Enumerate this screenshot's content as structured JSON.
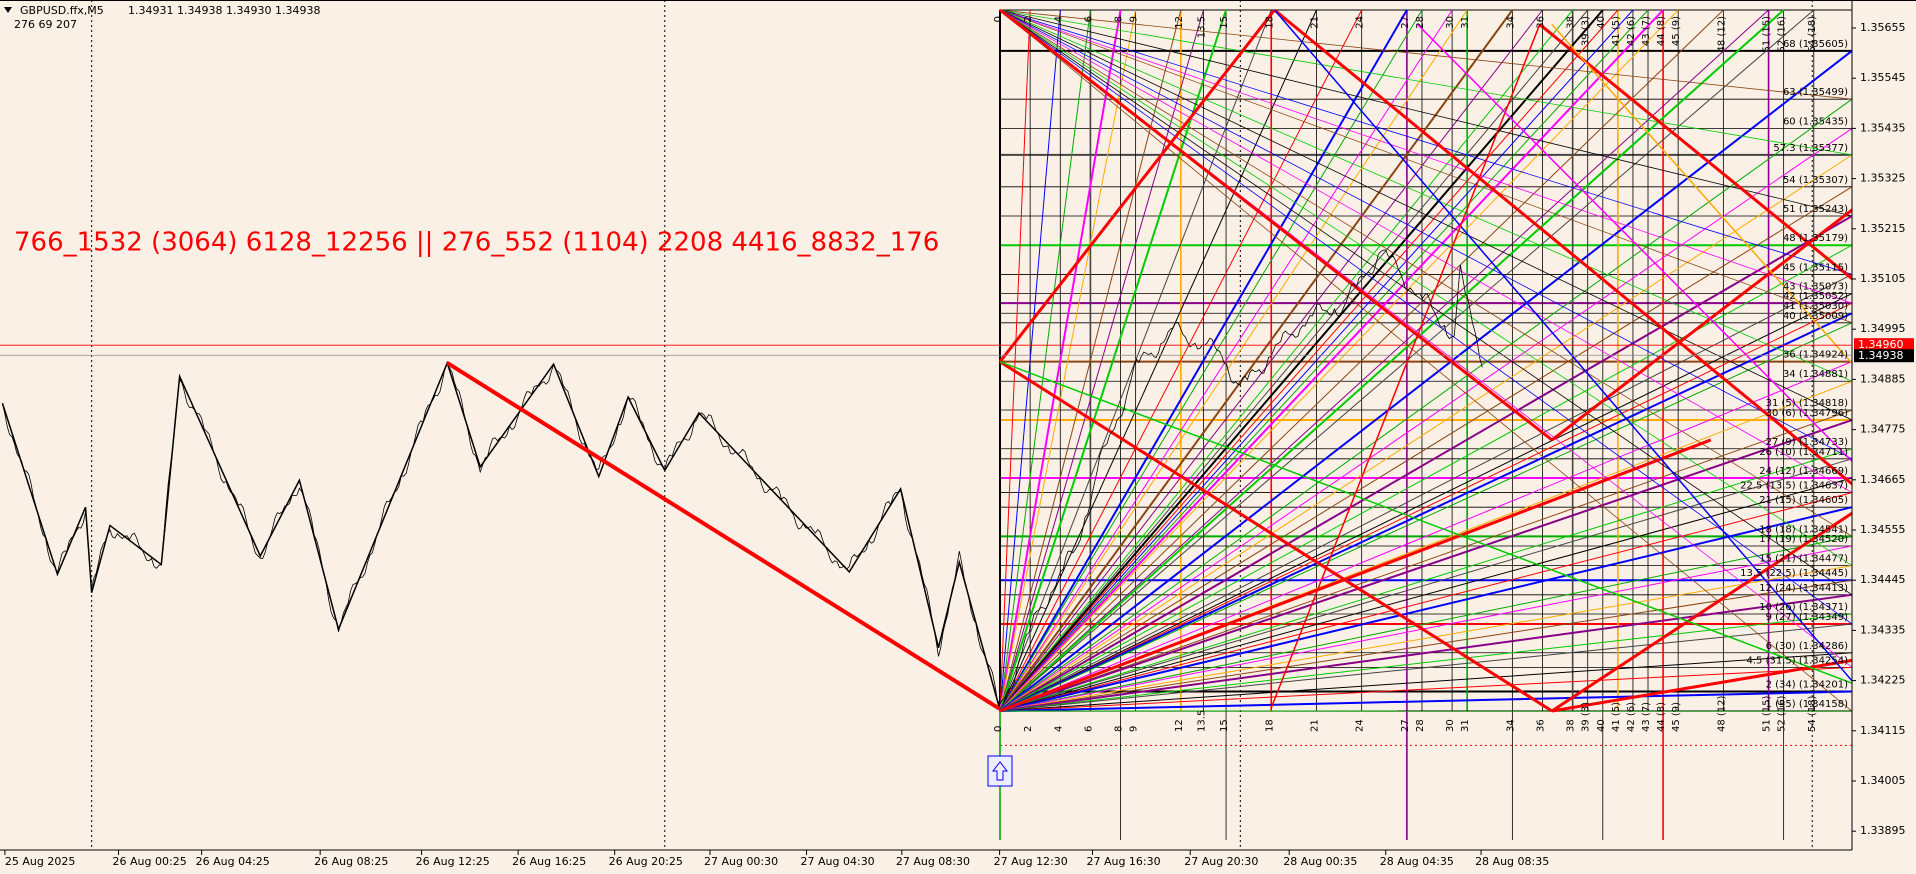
{
  "header": {
    "symbol": "GBPUSD.ffx,M5",
    "ohlc": "1.34931 1.34938 1.34930 1.34938",
    "indicator": "276  69  207"
  },
  "annotation": "766_1532 (3064) 6128_12256 || 276_552 (1104) 2208 4416_8832_176",
  "price_axis": {
    "labels": [
      "1.35655",
      "1.35545",
      "1.35435",
      "1.35325",
      "1.35215",
      "1.35105",
      "1.34995",
      "1.34885",
      "1.34775",
      "1.34665",
      "1.34555",
      "1.34445",
      "1.34335",
      "1.34225",
      "1.34115",
      "1.34005",
      "1.33895"
    ],
    "bid": "1.34960",
    "current": "1.34938"
  },
  "time_axis": [
    "25 Aug 2025",
    "26 Aug 00:25",
    "26 Aug 04:25",
    "26 Aug 08:25",
    "26 Aug 12:25",
    "26 Aug 16:25",
    "26 Aug 20:25",
    "27 Aug 00:30",
    "27 Aug 04:30",
    "27 Aug 08:30",
    "27 Aug 12:30",
    "27 Aug 16:30",
    "27 Aug 20:30",
    "28 Aug 00:35",
    "28 Aug 04:35",
    "28 Aug 08:35"
  ],
  "level_labels": [
    "68 (1.35605)",
    "63 (1.35499)",
    "60 (1.35435)",
    "57.3 (1.35377)",
    "54 (1.35307)",
    "51 (1.35243)",
    "48 (1.35179)",
    "45 (1.35115)",
    "43 (1.35073)",
    "42 (1.35052)",
    "41 (1.35030)",
    "40 (1.35009)",
    "36 (1.34924)",
    "34 (1.34881)",
    "31 (5) (1.34818)",
    "30 (6) (1.34796)",
    "27 (9) (1.34733)",
    "26 (10) (1.34711)",
    "24 (12) (1.34669)",
    "22.5 (13.5) (1.34637)",
    "21 (15) (1.34605)",
    "18 (18) (1.34541)",
    "17 (19) (1.34520)",
    "15 (21) (1.34477)",
    "13.5 (22.5) (1.34445)",
    "12 (24) (1.34413)",
    "10 (26) (1.34371)",
    "9 (27) (1.34349)",
    "6 (30) (1.34286)",
    "4.5 (31.5) (1.34254)",
    "2 (34) (1.34201)",
    "1 (35) (1.34158)"
  ],
  "time_labels": [
    "0",
    "2",
    "4",
    "6",
    "8",
    "9",
    "12",
    "13.5",
    "15",
    "18",
    "21",
    "24",
    "27",
    "28",
    "30",
    "31",
    "34",
    "36",
    "38",
    "39 (3)",
    "40",
    "41 (5)",
    "42 (6)",
    "43 (7)",
    "44 (8)",
    "45 (9)",
    "48 (12)",
    "51 (15)",
    "52 (16)",
    "54 (18)"
  ]
}
